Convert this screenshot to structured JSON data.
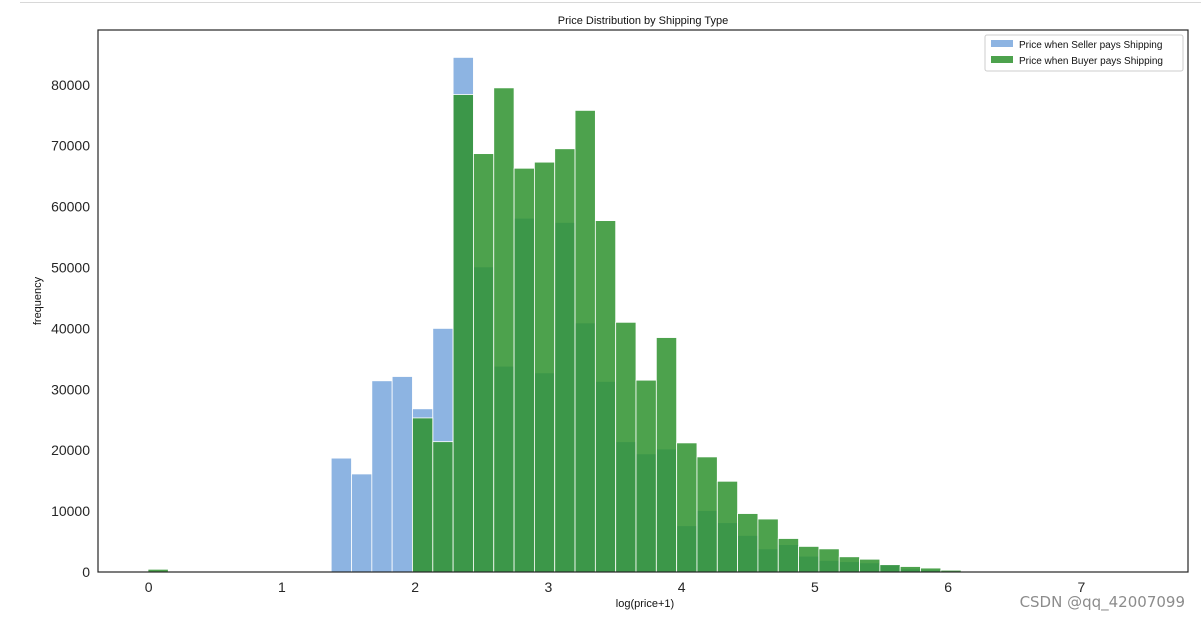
{
  "watermark": "CSDN @qq_42007099",
  "chart_data": {
    "type": "bar",
    "title": "Price Distribution by Shipping Type",
    "xlabel": "log(price+1)",
    "ylabel": "frequency",
    "xlim": [
      -0.38,
      7.8
    ],
    "ylim": [
      0,
      89000
    ],
    "xticks": [
      0,
      1,
      2,
      3,
      4,
      5,
      6,
      7
    ],
    "yticks": [
      0,
      10000,
      20000,
      30000,
      40000,
      50000,
      60000,
      70000,
      80000
    ],
    "bin_width": 0.1525,
    "grid": false,
    "legend_position": "top-right",
    "series": [
      {
        "name": "Price when Seller pays Shipping",
        "color": "#8db4e2",
        "alpha": 1,
        "bins": [
          {
            "x": 1.37,
            "value": 18700
          },
          {
            "x": 1.5225,
            "value": 16100
          },
          {
            "x": 1.675,
            "value": 31400
          },
          {
            "x": 1.8275,
            "value": 32100
          },
          {
            "x": 1.98,
            "value": 26800
          },
          {
            "x": 2.1325,
            "value": 40000
          },
          {
            "x": 2.285,
            "value": 84500
          },
          {
            "x": 2.4375,
            "value": 50100
          },
          {
            "x": 2.59,
            "value": 33800
          },
          {
            "x": 2.7425,
            "value": 58100
          },
          {
            "x": 2.895,
            "value": 32700
          },
          {
            "x": 3.0475,
            "value": 57400
          },
          {
            "x": 3.2,
            "value": 40900
          },
          {
            "x": 3.3525,
            "value": 31300
          },
          {
            "x": 3.505,
            "value": 21400
          },
          {
            "x": 3.6575,
            "value": 19400
          },
          {
            "x": 3.81,
            "value": 20200
          },
          {
            "x": 3.9625,
            "value": 7600
          },
          {
            "x": 4.115,
            "value": 10100
          },
          {
            "x": 4.2675,
            "value": 8100
          },
          {
            "x": 4.42,
            "value": 6000
          },
          {
            "x": 4.5725,
            "value": 3800
          },
          {
            "x": 4.725,
            "value": 4500
          },
          {
            "x": 4.8775,
            "value": 2600
          },
          {
            "x": 5.03,
            "value": 1900
          },
          {
            "x": 5.1825,
            "value": 1700
          },
          {
            "x": 5.335,
            "value": 1500
          },
          {
            "x": 5.4875,
            "value": 1200
          },
          {
            "x": 5.64,
            "value": 500
          },
          {
            "x": 5.7925,
            "value": 300
          },
          {
            "x": 5.945,
            "value": 150
          }
        ]
      },
      {
        "name": "Price when Buyer pays Shipping",
        "color": "#2e922e",
        "alpha": 0.85,
        "bins": [
          {
            "x": -0.005,
            "value": 450
          },
          {
            "x": 1.98,
            "value": 25300
          },
          {
            "x": 2.1325,
            "value": 21400
          },
          {
            "x": 2.285,
            "value": 78400
          },
          {
            "x": 2.4375,
            "value": 68700
          },
          {
            "x": 2.59,
            "value": 79500
          },
          {
            "x": 2.7425,
            "value": 66300
          },
          {
            "x": 2.895,
            "value": 67300
          },
          {
            "x": 3.0475,
            "value": 69500
          },
          {
            "x": 3.2,
            "value": 75800
          },
          {
            "x": 3.3525,
            "value": 57700
          },
          {
            "x": 3.505,
            "value": 41000
          },
          {
            "x": 3.6575,
            "value": 31500
          },
          {
            "x": 3.81,
            "value": 38500
          },
          {
            "x": 3.9625,
            "value": 21200
          },
          {
            "x": 4.115,
            "value": 18900
          },
          {
            "x": 4.2675,
            "value": 14900
          },
          {
            "x": 4.42,
            "value": 9600
          },
          {
            "x": 4.5725,
            "value": 8700
          },
          {
            "x": 4.725,
            "value": 5500
          },
          {
            "x": 4.8775,
            "value": 4200
          },
          {
            "x": 5.03,
            "value": 3800
          },
          {
            "x": 5.1825,
            "value": 2500
          },
          {
            "x": 5.335,
            "value": 2100
          },
          {
            "x": 5.4875,
            "value": 1200
          },
          {
            "x": 5.64,
            "value": 900
          },
          {
            "x": 5.7925,
            "value": 650
          },
          {
            "x": 5.945,
            "value": 300
          }
        ]
      }
    ]
  }
}
